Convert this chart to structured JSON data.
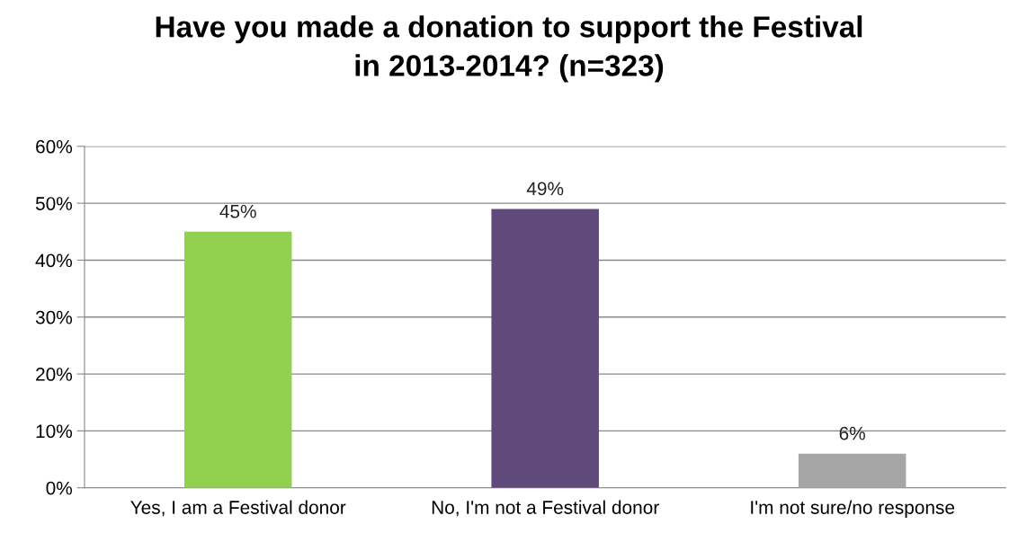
{
  "chart_data": {
    "type": "bar",
    "title": "Have you made a donation to support the Festival\nin 2013-2014? (n=323)",
    "categories": [
      "Yes, I am a Festival donor",
      "No, I'm not a Festival donor",
      "I'm not sure/no response"
    ],
    "values": [
      45,
      49,
      6
    ],
    "colors": [
      "#92d050",
      "#604a7b",
      "#a6a6a6"
    ],
    "value_labels": [
      "45%",
      "49%",
      "6%"
    ],
    "ylim": [
      0,
      60
    ],
    "yticks": [
      {
        "value": 0,
        "label": "0%"
      },
      {
        "value": 10,
        "label": "10%"
      },
      {
        "value": 20,
        "label": "20%"
      },
      {
        "value": 30,
        "label": "30%"
      },
      {
        "value": 40,
        "label": "40%"
      },
      {
        "value": 50,
        "label": "50%"
      },
      {
        "value": 60,
        "label": "60%"
      }
    ],
    "grid": "y"
  }
}
